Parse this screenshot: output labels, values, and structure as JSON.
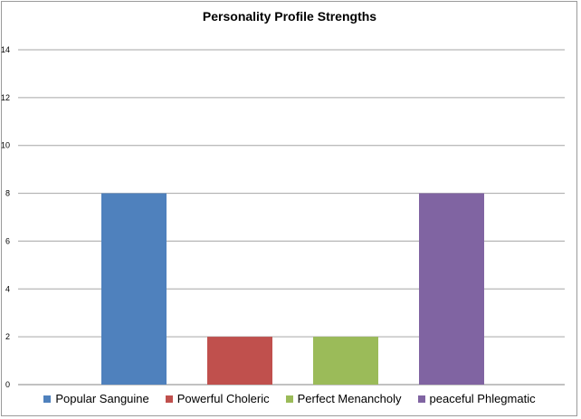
{
  "chart_data": {
    "type": "bar",
    "title": "Personality Profile Strengths",
    "categories": [
      "Popular Sanguine",
      "Powerful Choleric",
      "Perfect Menancholy",
      "peaceful Phlegmatic"
    ],
    "values": [
      8,
      2,
      2,
      8
    ],
    "colors": [
      "#4f81bd",
      "#c0504d",
      "#9bbb59",
      "#8064a2"
    ],
    "ylim": [
      0,
      14
    ],
    "yticks": [
      0,
      2,
      4,
      6,
      8,
      10,
      12,
      14
    ],
    "grid": true,
    "legend_position": "bottom"
  }
}
